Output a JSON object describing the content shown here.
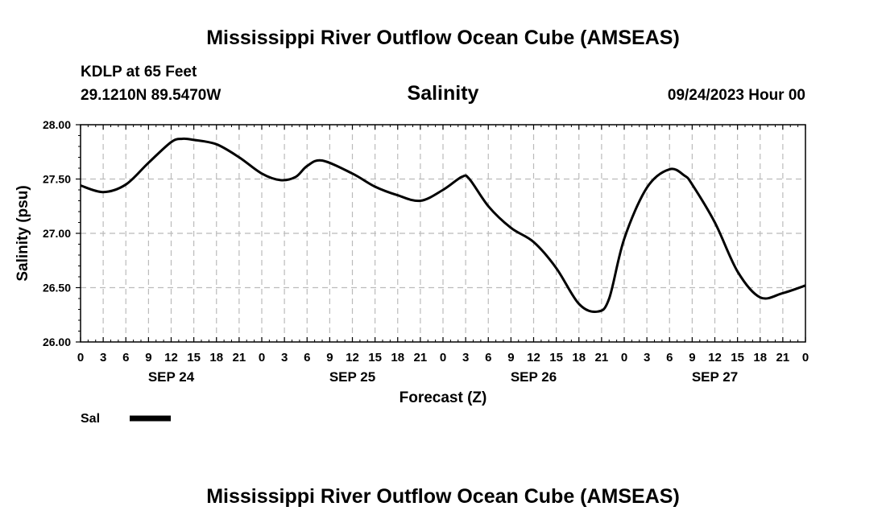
{
  "header": {
    "title": "Mississippi River Outflow Ocean Cube (AMSEAS)",
    "station": "KDLP at 65 Feet",
    "location": "29.1210N  89.5470W",
    "variable": "Salinity",
    "run": "09/24/2023 Hour 00"
  },
  "footer": {
    "title": "Mississippi River Outflow Ocean Cube (AMSEAS)"
  },
  "chart_data": {
    "type": "line",
    "title": "Salinity",
    "xlabel": "Forecast (Z)",
    "ylabel": "Salinity (psu)",
    "xlim": [
      0,
      96
    ],
    "ylim": [
      26.0,
      28.0
    ],
    "grid": true,
    "y_ticks": [
      26.0,
      26.5,
      27.0,
      27.5,
      28.0
    ],
    "y_tick_labels": [
      "26.00",
      "26.50",
      "27.00",
      "27.50",
      "28.00"
    ],
    "x_tick_step_hours": 3,
    "x_tick_labels": [
      "0",
      "3",
      "6",
      "9",
      "12",
      "15",
      "18",
      "21",
      "0",
      "3",
      "6",
      "9",
      "12",
      "15",
      "18",
      "21",
      "0",
      "3",
      "6",
      "9",
      "12",
      "15",
      "18",
      "21",
      "0",
      "3",
      "6",
      "9",
      "12",
      "15",
      "18",
      "21",
      "0"
    ],
    "date_labels": [
      {
        "label": "SEP 24",
        "hour": 12
      },
      {
        "label": "SEP 25",
        "hour": 36
      },
      {
        "label": "SEP 26",
        "hour": 60
      },
      {
        "label": "SEP 27",
        "hour": 84
      }
    ],
    "series": [
      {
        "name": "Sal",
        "color": "#000000",
        "x": [
          0,
          3,
          6,
          9,
          12,
          13.5,
          15,
          18,
          21,
          24,
          26.5,
          28.5,
          30,
          32,
          36,
          39,
          42,
          45,
          48,
          50.5,
          51.5,
          54,
          57,
          60,
          63,
          66,
          68.5,
          70,
          72,
          75,
          78,
          80,
          81,
          84,
          87,
          90,
          93,
          96
        ],
        "y": [
          27.44,
          27.38,
          27.45,
          27.65,
          27.84,
          27.87,
          27.86,
          27.82,
          27.7,
          27.55,
          27.49,
          27.52,
          27.62,
          27.67,
          27.55,
          27.43,
          27.35,
          27.3,
          27.4,
          27.52,
          27.5,
          27.25,
          27.05,
          26.92,
          26.68,
          26.35,
          26.28,
          26.4,
          26.95,
          27.42,
          27.59,
          27.53,
          27.45,
          27.1,
          26.65,
          26.41,
          26.45,
          26.52
        ]
      }
    ]
  },
  "legend": {
    "items": [
      {
        "label": "Sal",
        "color": "#000000"
      }
    ]
  }
}
